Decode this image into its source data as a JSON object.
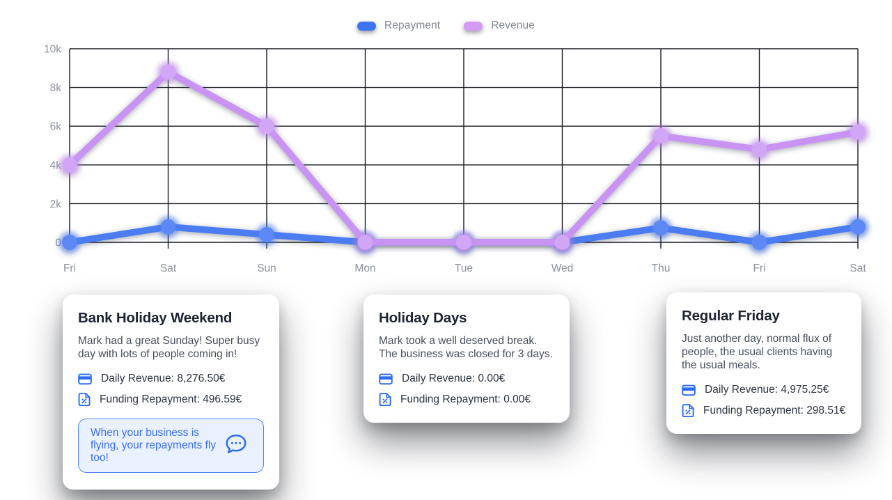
{
  "page": {
    "background": "#ffffff"
  },
  "legend": {
    "items": [
      {
        "label": "Repayment",
        "color": "#3c73f2"
      },
      {
        "label": "Revenue",
        "color": "#d49bf4"
      }
    ]
  },
  "chart_data": {
    "type": "line",
    "categories": [
      "Fri",
      "Sat",
      "Sun",
      "Mon",
      "Tue",
      "Wed",
      "Thu",
      "Fri",
      "Sat"
    ],
    "series": [
      {
        "name": "Repayment",
        "color": "#4c7cf2",
        "marker": "#5d89f6",
        "values": [
          0,
          800,
          400,
          0,
          0,
          0,
          750,
          0,
          800
        ]
      },
      {
        "name": "Revenue",
        "color": "#c993f3",
        "marker": "#d2a6f6",
        "values": [
          4000,
          8800,
          6000,
          0,
          0,
          0,
          5500,
          4800,
          5700
        ]
      }
    ],
    "yticks": [
      0,
      2000,
      4000,
      6000,
      8000,
      10000
    ],
    "ytick_labels": [
      "0",
      "2k",
      "4k",
      "6k",
      "8k",
      "10k"
    ],
    "ylim": [
      0,
      10000
    ],
    "grid": true,
    "legend_position": "top"
  },
  "cards": [
    {
      "title": "Bank Holiday Weekend",
      "body": "Mark had a great Sunday! Super busy day with lots of people coming in!",
      "rows": [
        {
          "icon": "credit-card-icon",
          "label": "Daily Revenue: 8,276.50€"
        },
        {
          "icon": "invoice-percent-icon",
          "label": "Funding Repayment: 496.59€"
        }
      ],
      "callout": {
        "text": "When your business is flying, your repayments fly too!",
        "icon": "chat-bubble-icon"
      }
    },
    {
      "title": "Holiday Days",
      "body": "Mark took a well deserved break. The business was closed for 3 days.",
      "rows": [
        {
          "icon": "credit-card-icon",
          "label": "Daily Revenue: 0.00€"
        },
        {
          "icon": "invoice-percent-icon",
          "label": "Funding Repayment: 0.00€"
        }
      ]
    },
    {
      "title": "Regular Friday",
      "body": "Just another day, normal flux of people, the usual clients having the usual meals.",
      "rows": [
        {
          "icon": "credit-card-icon",
          "label": "Daily Revenue: 4,975.25€"
        },
        {
          "icon": "invoice-percent-icon",
          "label": "Funding Repayment: 298.51€"
        }
      ]
    }
  ]
}
